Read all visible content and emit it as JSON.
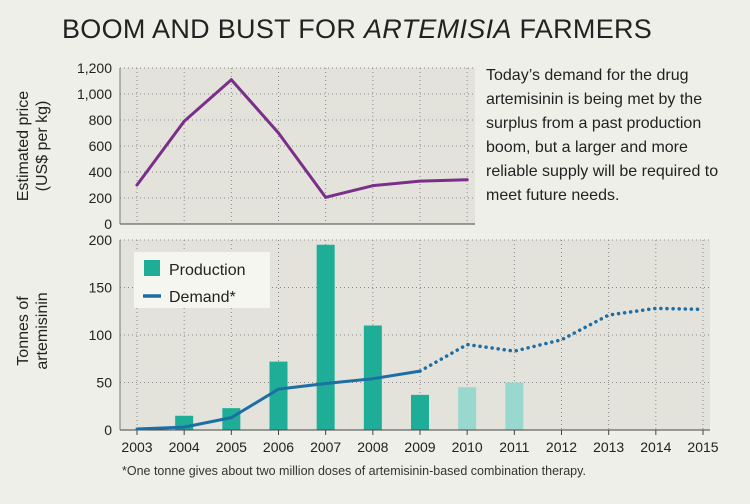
{
  "title": {
    "prefix": "BOOM AND BUST FOR ",
    "italic": "ARTEMISIA",
    "suffix": " FARMERS"
  },
  "annotation": "Today’s demand for the drug artemisinin is being met by the surplus from a past production boom, but a larger and more reliable supply will be required to meet future needs.",
  "footnote": "*One tonne gives about two million doses of artemisinin-based combination therapy.",
  "colors": {
    "price_line": "#7a2f8a",
    "production_actual": "#1eae98",
    "production_projected": "#98d8ce",
    "demand_line": "#1c6ea4",
    "grid": "#8a8a8a",
    "plot_bg": "#e3e3db",
    "legend_bg": "#f6f6f1"
  },
  "chart_data": [
    {
      "type": "line",
      "ylabel": [
        "Estimated price",
        "(US$ per kg)"
      ],
      "ylim": [
        0,
        1200
      ],
      "yticks": [
        0,
        200,
        400,
        600,
        800,
        1000,
        1200
      ],
      "ytick_labels": [
        "0",
        "200",
        "400",
        "600",
        "800",
        "1,000",
        "1,200"
      ],
      "x": [
        2003,
        2004,
        2005,
        2006,
        2007,
        2008,
        2009,
        2010
      ],
      "series": [
        {
          "values": [
            300,
            790,
            1110,
            700,
            205,
            295,
            330,
            340
          ]
        }
      ]
    },
    {
      "type": "bar",
      "ylabel": [
        "Tonnes of",
        "artemisinin"
      ],
      "ylim": [
        0,
        200
      ],
      "yticks": [
        0,
        50,
        100,
        150,
        200
      ],
      "ytick_labels": [
        "0",
        "50",
        "100",
        "150",
        "200"
      ],
      "xlim": [
        2003,
        2015
      ],
      "xticks": [
        2003,
        2004,
        2005,
        2006,
        2007,
        2008,
        2009,
        2010,
        2011,
        2012,
        2013,
        2014,
        2015
      ],
      "xtick_labels": [
        "2003",
        "2004",
        "2005",
        "2006",
        "2007",
        "2008",
        "2009",
        "2010",
        "2011",
        "2012",
        "2013",
        "2014",
        "2015"
      ],
      "legend_position": "top-left",
      "series": [
        {
          "name": "Production",
          "type": "bar",
          "x": [
            2004,
            2005,
            2006,
            2007,
            2008,
            2009,
            2010,
            2011
          ],
          "values": [
            15,
            23,
            72,
            195,
            110,
            37,
            45,
            50
          ],
          "projected_from": 2010
        },
        {
          "name": "Demand*",
          "type": "line",
          "x": [
            2003,
            2004,
            2005,
            2006,
            2007,
            2008,
            2009,
            2010,
            2011,
            2012,
            2013,
            2014,
            2015
          ],
          "values": [
            1,
            3,
            13,
            43,
            49,
            54,
            62,
            90,
            83,
            95,
            121,
            128,
            127
          ],
          "projected_from": 2009
        }
      ]
    }
  ]
}
